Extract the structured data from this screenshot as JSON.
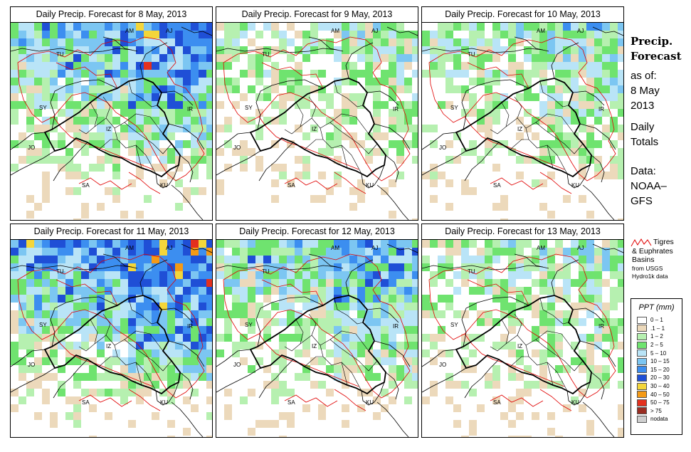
{
  "panels": [
    {
      "title": "Daily Precip. Forecast for  8 May, 2013",
      "intensity": 1.0,
      "seed": 11
    },
    {
      "title": "Daily Precip. Forecast for  9 May, 2013",
      "intensity": 0.55,
      "seed": 23
    },
    {
      "title": "Daily Precip. Forecast for  10 May, 2013",
      "intensity": 0.65,
      "seed": 37
    },
    {
      "title": "Daily Precip. Forecast for  11 May, 2013",
      "intensity": 1.2,
      "seed": 41
    },
    {
      "title": "Daily Precip. Forecast for  12 May, 2013",
      "intensity": 0.85,
      "seed": 53
    },
    {
      "title": "Daily Precip. Forecast for  13 May, 2013",
      "intensity": 0.6,
      "seed": 67
    }
  ],
  "country_labels": [
    "AM",
    "AJ",
    "TU",
    "SY",
    "IR",
    "IZ",
    "JO",
    "SA",
    "KU"
  ],
  "sidebar": {
    "title_line1": "Precip.",
    "title_line2": "Forecast",
    "asof": "as of:",
    "date_line1": "8 May",
    "date_line2": "2013",
    "daily_line1": "Daily",
    "daily_line2": "Totals",
    "data_line1": "Data:",
    "data_line2": "NOAA–",
    "data_line3": "GFS"
  },
  "basin_note": {
    "line1": "Tigres",
    "line2": "& Euphrates",
    "line3": "Basins",
    "line4": "from USGS",
    "line5": "Hydro1k data"
  },
  "legend": {
    "title": "PPT (mm)",
    "items": [
      {
        "label": "0 – 1",
        "color": "#ffffff"
      },
      {
        "label": ".1 – 1",
        "color": "#ecd9bb"
      },
      {
        "label": "1 – 2",
        "color": "#b6f0b0"
      },
      {
        "label": "2 – 5",
        "color": "#6fe36f"
      },
      {
        "label": "5 – 10",
        "color": "#b9e4f7"
      },
      {
        "label": "10 – 15",
        "color": "#7cc6f2"
      },
      {
        "label": "15 – 20",
        "color": "#3c8ef0"
      },
      {
        "label": "20 – 30",
        "color": "#1f4fd6"
      },
      {
        "label": "30 – 40",
        "color": "#f4d63a"
      },
      {
        "label": "40 – 50",
        "color": "#f59a16"
      },
      {
        "label": "50 – 75",
        "color": "#e4301e"
      },
      {
        "label": "> 75",
        "color": "#9a2d22"
      },
      {
        "label": "nodata",
        "color": "#cfcfcf"
      }
    ]
  }
}
